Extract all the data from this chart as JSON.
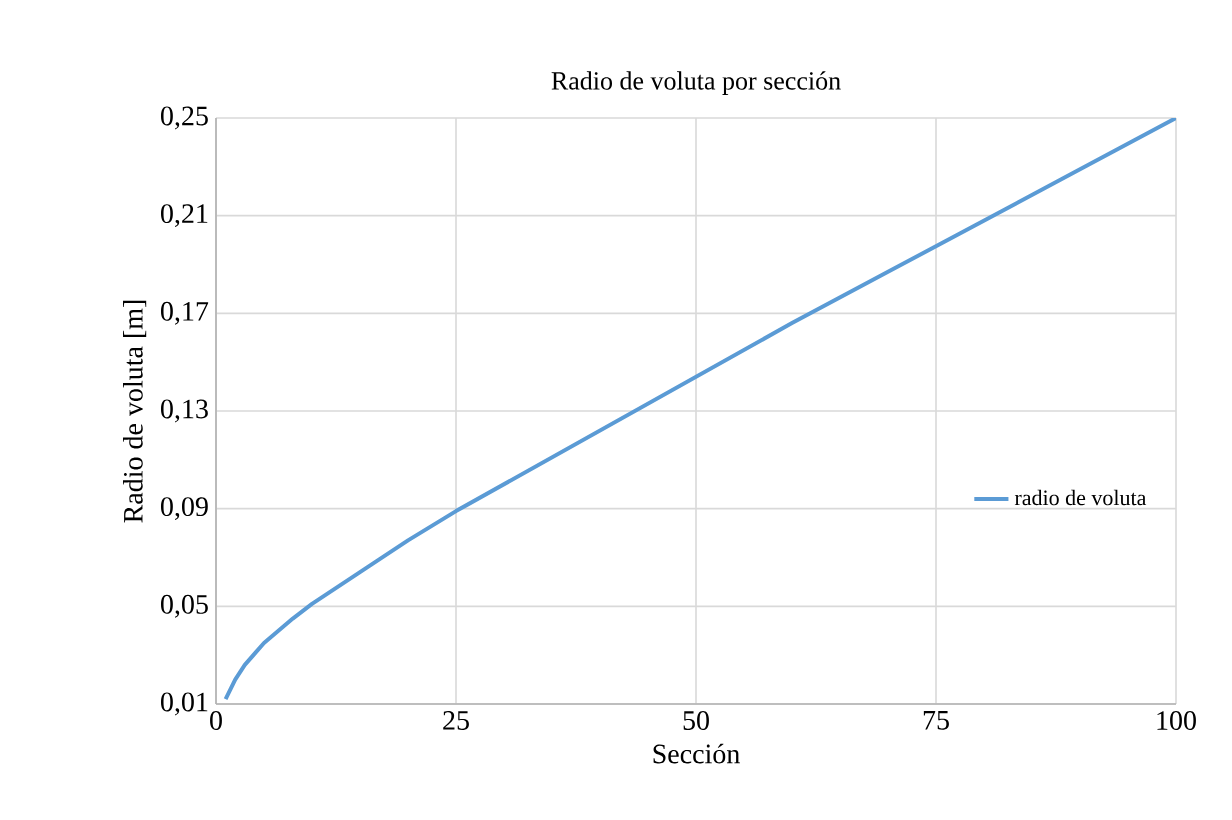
{
  "chart_data": {
    "type": "line",
    "title": "Radio de voluta por sección",
    "xlabel": "Sección",
    "ylabel": "Radio de voluta [m]",
    "series": [
      {
        "name": "radio de voluta",
        "color": "#5b9bd5",
        "x": [
          1,
          2,
          3,
          5,
          8,
          10,
          15,
          20,
          25,
          30,
          40,
          50,
          60,
          70,
          80,
          90,
          100
        ],
        "values": [
          0.012,
          0.02,
          0.026,
          0.035,
          0.045,
          0.051,
          0.064,
          0.077,
          0.089,
          0.1,
          0.122,
          0.144,
          0.166,
          0.187,
          0.208,
          0.229,
          0.25
        ]
      }
    ],
    "xlim": [
      0,
      100
    ],
    "xticks": [
      0,
      25,
      50,
      75,
      100
    ],
    "ylim": [
      0.01,
      0.25
    ],
    "yticks": [
      {
        "value": 0.01,
        "label": "0,01"
      },
      {
        "value": 0.05,
        "label": "0,05"
      },
      {
        "value": 0.09,
        "label": "0,09"
      },
      {
        "value": 0.13,
        "label": "0,13"
      },
      {
        "value": 0.17,
        "label": "0,17"
      },
      {
        "value": 0.21,
        "label": "0,21"
      },
      {
        "value": 0.25,
        "label": "0,25"
      }
    ],
    "grid": true,
    "legend": "right",
    "marker": "none",
    "line_style": "solid"
  }
}
